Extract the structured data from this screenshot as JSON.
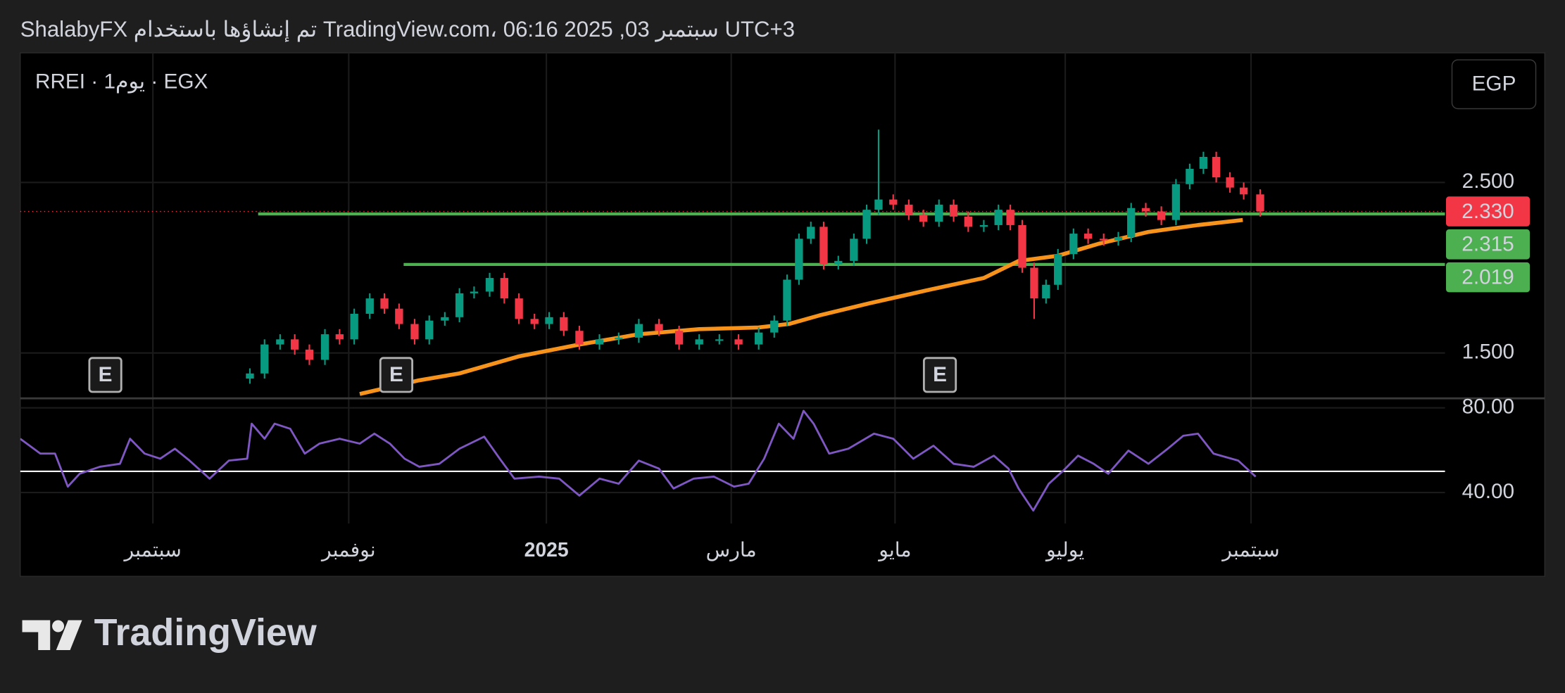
{
  "header": {
    "text": "ShalabyFX تم إنشاؤها باستخدام TradingView.com، 06:16 2025 ,03 سبتمبر UTC+3"
  },
  "chart_data": [
    {
      "type": "candlestick",
      "symbol": "RREI · 1يوم · EGX",
      "currency": "EGP",
      "up_color": "#089981",
      "down_color": "#f23645",
      "x": [
        1.06,
        1.22,
        1.39,
        1.55,
        1.71,
        1.88,
        2.04,
        2.2,
        2.37,
        2.53,
        2.69,
        2.86,
        3.02,
        3.19,
        3.35,
        3.51,
        3.68,
        3.84,
        4.0,
        4.17,
        4.33,
        4.49,
        4.66,
        4.88,
        5.09,
        5.31,
        5.53,
        5.75,
        5.97,
        6.19,
        6.4,
        6.62,
        6.79,
        6.93,
        7.06,
        7.19,
        7.33,
        7.49,
        7.66,
        7.8,
        7.93,
        8.09,
        8.26,
        8.42,
        8.59,
        8.75,
        8.91,
        9.08,
        9.24,
        9.37,
        9.5,
        9.63,
        9.76,
        9.89,
        10.06,
        10.22,
        10.39,
        10.55,
        10.69,
        10.85,
        11.02,
        11.18,
        11.33,
        11.48,
        11.62,
        11.77,
        11.92,
        12.1
      ],
      "open": [
        1.35,
        1.38,
        1.55,
        1.58,
        1.52,
        1.46,
        1.61,
        1.58,
        1.73,
        1.82,
        1.76,
        1.67,
        1.58,
        1.69,
        1.71,
        1.85,
        1.86,
        1.94,
        1.82,
        1.7,
        1.67,
        1.71,
        1.63,
        1.55,
        1.58,
        1.59,
        1.67,
        1.63,
        1.55,
        1.58,
        1.58,
        1.55,
        1.62,
        1.69,
        1.93,
        2.17,
        2.24,
        2.02,
        2.04,
        2.17,
        2.34,
        2.4,
        2.37,
        2.31,
        2.27,
        2.37,
        2.3,
        2.24,
        2.25,
        2.34,
        2.25,
        2.0,
        1.82,
        1.9,
        2.08,
        2.2,
        2.17,
        2.16,
        2.18,
        2.35,
        2.33,
        2.28,
        2.49,
        2.58,
        2.65,
        2.53,
        2.47,
        2.43
      ],
      "high": [
        1.41,
        1.58,
        1.61,
        1.61,
        1.55,
        1.64,
        1.64,
        1.76,
        1.85,
        1.85,
        1.79,
        1.7,
        1.72,
        1.74,
        1.88,
        1.89,
        1.97,
        1.97,
        1.85,
        1.73,
        1.74,
        1.74,
        1.66,
        1.61,
        1.62,
        1.7,
        1.7,
        1.66,
        1.61,
        1.61,
        1.61,
        1.65,
        1.72,
        1.96,
        2.2,
        2.27,
        2.27,
        2.07,
        2.2,
        2.37,
        2.81,
        2.43,
        2.4,
        2.34,
        2.4,
        2.4,
        2.33,
        2.28,
        2.37,
        2.37,
        2.28,
        2.03,
        1.93,
        2.11,
        2.23,
        2.23,
        2.2,
        2.21,
        2.38,
        2.38,
        2.36,
        2.52,
        2.61,
        2.68,
        2.68,
        2.56,
        2.5,
        2.46
      ],
      "low": [
        1.32,
        1.35,
        1.52,
        1.49,
        1.43,
        1.43,
        1.55,
        1.55,
        1.7,
        1.73,
        1.64,
        1.55,
        1.55,
        1.66,
        1.68,
        1.82,
        1.83,
        1.79,
        1.67,
        1.64,
        1.64,
        1.6,
        1.52,
        1.52,
        1.55,
        1.56,
        1.6,
        1.52,
        1.52,
        1.55,
        1.52,
        1.52,
        1.59,
        1.66,
        1.9,
        2.14,
        1.99,
        1.99,
        2.01,
        2.14,
        2.31,
        2.34,
        2.28,
        2.24,
        2.24,
        2.27,
        2.21,
        2.21,
        2.22,
        2.22,
        1.97,
        1.7,
        1.79,
        1.87,
        2.05,
        2.14,
        2.13,
        2.13,
        2.15,
        2.3,
        2.25,
        2.25,
        2.46,
        2.55,
        2.5,
        2.44,
        2.4,
        2.3
      ],
      "close": [
        1.38,
        1.55,
        1.58,
        1.52,
        1.46,
        1.61,
        1.58,
        1.73,
        1.82,
        1.76,
        1.67,
        1.58,
        1.69,
        1.71,
        1.85,
        1.86,
        1.94,
        1.82,
        1.7,
        1.67,
        1.71,
        1.63,
        1.55,
        1.58,
        1.59,
        1.67,
        1.63,
        1.55,
        1.58,
        1.58,
        1.55,
        1.62,
        1.69,
        1.93,
        2.17,
        2.24,
        2.02,
        2.04,
        2.17,
        2.34,
        2.4,
        2.37,
        2.31,
        2.27,
        2.37,
        2.3,
        2.24,
        2.25,
        2.34,
        2.25,
        2.0,
        1.82,
        1.9,
        2.08,
        2.2,
        2.17,
        2.16,
        2.18,
        2.35,
        2.33,
        2.28,
        2.49,
        2.58,
        2.65,
        2.53,
        2.47,
        2.43,
        2.33
      ],
      "series": [
        {
          "color": "#f7931a",
          "x": [
            2.26,
            2.91,
            3.35,
            4.0,
            4.66,
            5.31,
            5.97,
            6.62,
            6.95,
            7.28,
            7.82,
            8.48,
            9.08,
            9.46,
            9.89,
            10.33,
            10.88,
            11.42,
            11.91
          ],
          "values": [
            1.26,
            1.34,
            1.38,
            1.48,
            1.55,
            1.61,
            1.64,
            1.65,
            1.67,
            1.72,
            1.79,
            1.87,
            1.94,
            2.04,
            2.07,
            2.14,
            2.21,
            2.25,
            2.28
          ]
        }
      ],
      "price_lines": {
        "values": [
          2.315,
          2.019
        ],
        "value_labels": [
          "2.315",
          "2.019"
        ],
        "x_start": [
          1.15,
          2.74
        ],
        "color": "#4caf50"
      },
      "last_price": {
        "value": 2.33,
        "label": "2.330",
        "color": "#f23645"
      },
      "events": {
        "labels": [
          "E",
          "E",
          "E"
        ],
        "x": [
          -0.52,
          2.66,
          8.6
        ]
      },
      "xlim": [
        -1.45,
        14.12
      ],
      "ylim": [
        1.237,
        3.26
      ],
      "yticks": [
        {
          "value": 1.5,
          "label": "1.500"
        },
        {
          "value": 2.5,
          "label": "2.500"
        }
      ],
      "xticks": [
        {
          "value": 0,
          "label": "سبتمبر"
        },
        {
          "value": 2.14,
          "label": "نوفمبر"
        },
        {
          "value": 4.3,
          "label": "2025"
        },
        {
          "value": 6.32,
          "label": "مارس"
        },
        {
          "value": 8.11,
          "label": "مايو"
        },
        {
          "value": 9.97,
          "label": "يوليو"
        },
        {
          "value": 12.0,
          "label": "سبتمبر"
        }
      ],
      "grid": true
    },
    {
      "type": "line",
      "color": "#7e57c2",
      "x": [
        -1.45,
        -1.23,
        -1.07,
        -0.93,
        -0.8,
        -0.58,
        -0.36,
        -0.25,
        -0.09,
        0.08,
        0.24,
        0.4,
        0.62,
        0.83,
        1.03,
        1.08,
        1.22,
        1.33,
        1.5,
        1.66,
        1.82,
        2.04,
        2.26,
        2.42,
        2.59,
        2.75,
        2.91,
        3.13,
        3.35,
        3.62,
        3.79,
        3.95,
        4.22,
        4.44,
        4.66,
        4.88,
        5.09,
        5.31,
        5.53,
        5.69,
        5.91,
        6.13,
        6.35,
        6.51,
        6.68,
        6.84,
        7.0,
        7.11,
        7.22,
        7.39,
        7.6,
        7.88,
        8.09,
        8.31,
        8.53,
        8.75,
        8.97,
        9.19,
        9.35,
        9.46,
        9.62,
        9.79,
        9.95,
        10.11,
        10.28,
        10.44,
        10.66,
        10.88,
        11.09,
        11.26,
        11.42,
        11.59,
        11.86,
        12.05
      ],
      "values": [
        65.4,
        58.4,
        58.4,
        42.8,
        48.9,
        52.2,
        53.6,
        65.4,
        58.4,
        56,
        60.7,
        55.1,
        46.6,
        55.1,
        56,
        72.5,
        65.4,
        72.5,
        70.1,
        58.4,
        63.1,
        65.4,
        63.1,
        67.8,
        63.1,
        56,
        52.2,
        53.6,
        60.7,
        66.4,
        56,
        46.6,
        47.5,
        46.6,
        38.6,
        46.6,
        44.2,
        55.1,
        51.3,
        41.9,
        46.6,
        47.5,
        42.8,
        44.2,
        56,
        72.5,
        65.4,
        78.6,
        72.5,
        58.4,
        60.7,
        67.8,
        65.4,
        56,
        62.1,
        53.6,
        52.2,
        57.4,
        51.3,
        41.9,
        31.5,
        44.2,
        50.4,
        57.4,
        53.6,
        48.9,
        59.8,
        53.6,
        60.7,
        66.8,
        67.8,
        58.4,
        55.1,
        47.5
      ],
      "midline": 50,
      "xlim": [
        -1.45,
        14.12
      ],
      "ylim": [
        25.4,
        84.7
      ],
      "yticks": [
        {
          "value": 40,
          "label": "40.00"
        },
        {
          "value": 80,
          "label": "80.00"
        }
      ],
      "grid": true
    }
  ],
  "branding": {
    "logo": "TradingView"
  }
}
